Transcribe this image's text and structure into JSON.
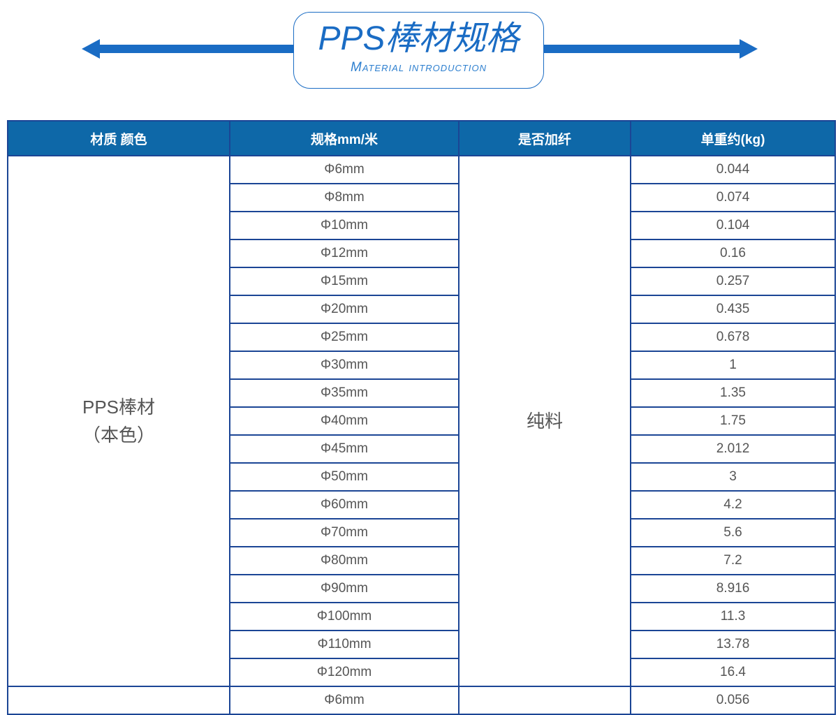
{
  "banner": {
    "title": "PPS棒材规格",
    "subtitle": "Material introduction"
  },
  "table": {
    "headers": [
      "材质 颜色",
      "规格mm/米",
      "是否加纤",
      "单重约(kg)"
    ],
    "groups": [
      {
        "material_line1": "PPS棒材",
        "material_line2": "（本色）",
        "fiber": "纯料",
        "rows": [
          [
            "Φ6mm",
            "0.044"
          ],
          [
            "Φ8mm",
            "0.074"
          ],
          [
            "Φ10mm",
            "0.104"
          ],
          [
            "Φ12mm",
            "0.16"
          ],
          [
            "Φ15mm",
            "0.257"
          ],
          [
            "Φ20mm",
            "0.435"
          ],
          [
            "Φ25mm",
            "0.678"
          ],
          [
            "Φ30mm",
            "1"
          ],
          [
            "Φ35mm",
            "1.35"
          ],
          [
            "Φ40mm",
            "1.75"
          ],
          [
            "Φ45mm",
            "2.012"
          ],
          [
            "Φ50mm",
            "3"
          ],
          [
            "Φ60mm",
            "4.2"
          ],
          [
            "Φ70mm",
            "5.6"
          ],
          [
            "Φ80mm",
            "7.2"
          ],
          [
            "Φ90mm",
            "8.916"
          ],
          [
            "Φ100mm",
            "11.3"
          ],
          [
            "Φ110mm",
            "13.78"
          ],
          [
            "Φ120mm",
            "16.4"
          ]
        ]
      },
      {
        "rows": [
          [
            "Φ6mm",
            "0.056"
          ]
        ]
      }
    ]
  }
}
